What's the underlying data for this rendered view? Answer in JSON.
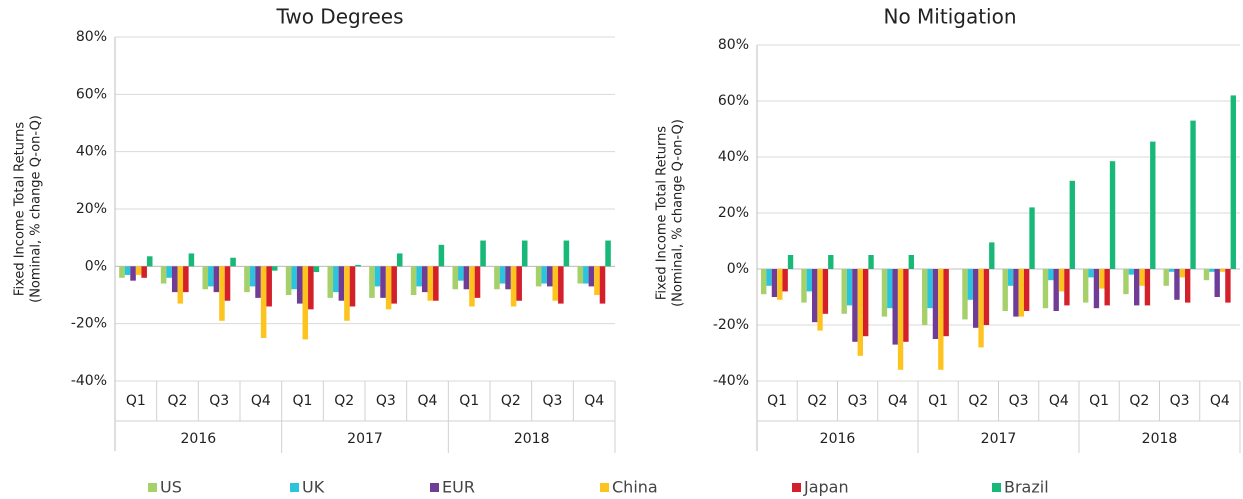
{
  "legend": {
    "names": [
      "US",
      "UK",
      "EUR",
      "China",
      "Japan",
      "Brazil"
    ],
    "colors": [
      "#a6d06a",
      "#2cc3dc",
      "#6f3c98",
      "#fdc420",
      "#d4202a",
      "#18b978"
    ]
  },
  "chart_data": [
    {
      "type": "bar",
      "title": "Two Degrees",
      "y_label": [
        "Fixed Income Total Returns",
        "(Nominal, % change Q-on-Q)"
      ],
      "categories": [
        "Q1",
        "Q2",
        "Q3",
        "Q4",
        "Q1",
        "Q2",
        "Q3",
        "Q4",
        "Q1",
        "Q2",
        "Q3",
        "Q4"
      ],
      "groups": [
        "2016",
        "2017",
        "2018"
      ],
      "ylim": [
        -40,
        80
      ],
      "yticks": [
        {
          "value": -40,
          "label": "-40%"
        },
        {
          "value": -20,
          "label": "-20%"
        },
        {
          "value": 0,
          "label": "0%"
        },
        {
          "value": 20,
          "label": "20%"
        },
        {
          "value": 40,
          "label": "40%"
        },
        {
          "value": 60,
          "label": "60%"
        },
        {
          "value": 80,
          "label": "80%"
        }
      ],
      "series": [
        {
          "values": [
            -4,
            -6,
            -8,
            -9,
            -10,
            -11,
            -11,
            -10,
            -8,
            -8,
            -7,
            -6
          ]
        },
        {
          "values": [
            -3,
            -4,
            -7,
            -7,
            -8,
            -9,
            -7,
            -7,
            -5,
            -6,
            -6,
            -6
          ]
        },
        {
          "values": [
            -5,
            -9,
            -9,
            -11,
            -13,
            -12,
            -11,
            -9,
            -8,
            -8,
            -7,
            -7
          ]
        },
        {
          "values": [
            -3,
            -13,
            -19,
            -25,
            -25.5,
            -19,
            -15,
            -12,
            -14,
            -14,
            -12,
            -10
          ]
        },
        {
          "values": [
            -4,
            -9,
            -12,
            -14,
            -15,
            -14,
            -13,
            -12,
            -11,
            -12,
            -13,
            -13
          ]
        },
        {
          "values": [
            3.5,
            4.5,
            3,
            -1.5,
            -2,
            0.5,
            4.5,
            7.5,
            9,
            9,
            9,
            9
          ]
        }
      ]
    },
    {
      "type": "bar",
      "title": "No Mitigation",
      "y_label": [
        "Fixed Income Total Returns",
        "(Nominal, % change Q-on-Q)"
      ],
      "categories": [
        "Q1",
        "Q2",
        "Q3",
        "Q4",
        "Q1",
        "Q2",
        "Q3",
        "Q4",
        "Q1",
        "Q2",
        "Q3",
        "Q4"
      ],
      "groups": [
        "2016",
        "2017",
        "2018"
      ],
      "ylim": [
        -40,
        80
      ],
      "yticks": [
        {
          "value": -40,
          "label": "-40%"
        },
        {
          "value": -20,
          "label": "-20%"
        },
        {
          "value": 0,
          "label": "0%"
        },
        {
          "value": 20,
          "label": "20%"
        },
        {
          "value": 40,
          "label": "40%"
        },
        {
          "value": 60,
          "label": "60%"
        },
        {
          "value": 80,
          "label": "80%"
        }
      ],
      "series": [
        {
          "values": [
            -9,
            -12,
            -16,
            -17,
            -20,
            -18,
            -15,
            -14,
            -12,
            -9,
            -6,
            -4
          ]
        },
        {
          "values": [
            -6,
            -8,
            -13,
            -14,
            -14,
            -11,
            -6,
            -4,
            -3,
            -2,
            -1,
            -1
          ]
        },
        {
          "values": [
            -10,
            -19,
            -26,
            -27,
            -25,
            -21,
            -17,
            -15,
            -14,
            -13,
            -11,
            -10
          ]
        },
        {
          "values": [
            -11,
            -22,
            -31,
            -36,
            -36,
            -28,
            -17,
            -8,
            -7,
            -6,
            -3,
            -1
          ]
        },
        {
          "values": [
            -8,
            -16,
            -24,
            -26,
            -24,
            -20,
            -15,
            -13,
            -13,
            -13,
            -12,
            -12
          ]
        },
        {
          "values": [
            5,
            5,
            5,
            5,
            0,
            9.5,
            22,
            31.5,
            38.5,
            45.5,
            53,
            62
          ]
        }
      ]
    }
  ]
}
